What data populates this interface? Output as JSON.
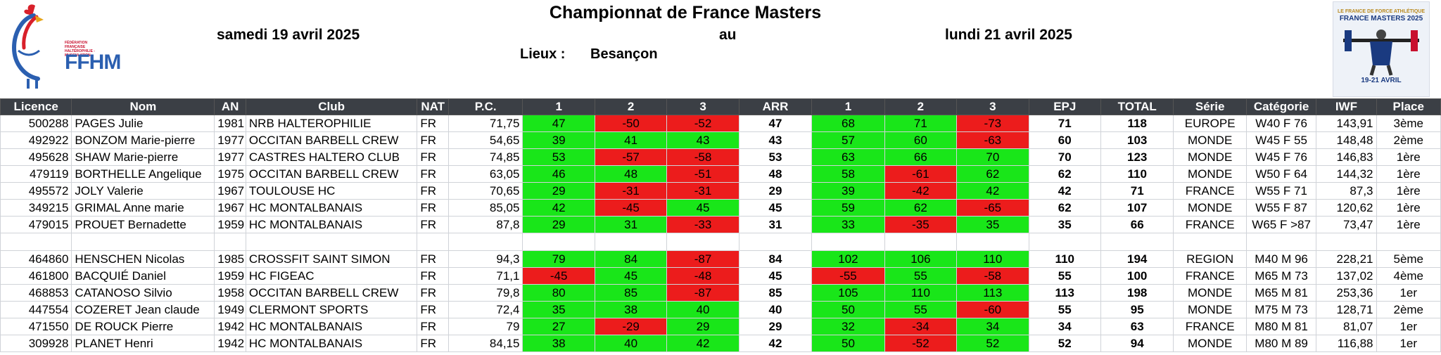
{
  "header": {
    "title": "Championnat de France Masters",
    "start_date": "samedi 19 avril 2025",
    "between": "au",
    "end_date": "lundi 21 avril 2025",
    "lieux_label": "Lieux :",
    "lieux_value": "Besançon"
  },
  "logo": {
    "name": "FFHM",
    "small_text": "FÉDÉRATION FRANÇAISE HALTÉROPHILIE - MUSCULATION"
  },
  "poster": {
    "top": "LE FRANCE DE FORCE ATHLÉTIQUE",
    "title": "FRANCE MASTERS 2025",
    "dates": "19-21 AVRIL"
  },
  "colors": {
    "success": "#19e619",
    "fail": "#ec1c1c",
    "header_bg": "#3b3f45"
  },
  "columns": [
    "Licence",
    "Nom",
    "AN",
    "Club",
    "NAT",
    "P.C.",
    "1",
    "2",
    "3",
    "ARR",
    "1",
    "2",
    "3",
    "EPJ",
    "TOTAL",
    "Série",
    "Catégorie",
    "IWF",
    "Place"
  ],
  "rows": [
    {
      "licence": "500288",
      "nom": "PAGES Julie",
      "an": "1981",
      "club": "NRB HALTEROPHILIE",
      "nat": "FR",
      "pc": "71,75",
      "s1": "47",
      "s2": "-50",
      "s3": "-52",
      "arr": "47",
      "e1": "68",
      "e2": "71",
      "e3": "-73",
      "epj": "71",
      "total": "118",
      "serie": "EUROPE",
      "categorie": "W40 F 76",
      "iwf": "143,91",
      "place": "3ème"
    },
    {
      "licence": "492922",
      "nom": "BONZOM Marie-pierre",
      "an": "1977",
      "club": "OCCITAN BARBELL CREW",
      "nat": "FR",
      "pc": "54,65",
      "s1": "39",
      "s2": "41",
      "s3": "43",
      "arr": "43",
      "e1": "57",
      "e2": "60",
      "e3": "-63",
      "epj": "60",
      "total": "103",
      "serie": "MONDE",
      "categorie": "W45 F 55",
      "iwf": "148,48",
      "place": "2ème"
    },
    {
      "licence": "495628",
      "nom": "SHAW Marie-pierre",
      "an": "1977",
      "club": "CASTRES HALTERO CLUB",
      "nat": "FR",
      "pc": "74,85",
      "s1": "53",
      "s2": "-57",
      "s3": "-58",
      "arr": "53",
      "e1": "63",
      "e2": "66",
      "e3": "70",
      "epj": "70",
      "total": "123",
      "serie": "MONDE",
      "categorie": "W45 F 76",
      "iwf": "146,83",
      "place": "1ère"
    },
    {
      "licence": "479119",
      "nom": "BORTHELLE Angelique",
      "an": "1975",
      "club": "OCCITAN BARBELL CREW",
      "nat": "FR",
      "pc": "63,05",
      "s1": "46",
      "s2": "48",
      "s3": "-51",
      "arr": "48",
      "e1": "58",
      "e2": "-61",
      "e3": "62",
      "epj": "62",
      "total": "110",
      "serie": "MONDE",
      "categorie": "W50 F 64",
      "iwf": "144,32",
      "place": "1ère"
    },
    {
      "licence": "495572",
      "nom": "JOLY Valerie",
      "an": "1967",
      "club": "TOULOUSE HC",
      "nat": "FR",
      "pc": "70,65",
      "s1": "29",
      "s2": "-31",
      "s3": "-31",
      "arr": "29",
      "e1": "39",
      "e2": "-42",
      "e3": "42",
      "epj": "42",
      "total": "71",
      "serie": "FRANCE",
      "categorie": "W55 F 71",
      "iwf": "87,3",
      "place": "1ère"
    },
    {
      "licence": "349215",
      "nom": "GRIMAL Anne marie",
      "an": "1967",
      "club": "HC MONTALBANAIS",
      "nat": "FR",
      "pc": "85,05",
      "s1": "42",
      "s2": "-45",
      "s3": "45",
      "arr": "45",
      "e1": "59",
      "e2": "62",
      "e3": "-65",
      "epj": "62",
      "total": "107",
      "serie": "MONDE",
      "categorie": "W55 F 87",
      "iwf": "120,62",
      "place": "1ère"
    },
    {
      "licence": "479015",
      "nom": "PROUET Bernadette",
      "an": "1959",
      "club": "HC MONTALBANAIS",
      "nat": "FR",
      "pc": "87,8",
      "s1": "29",
      "s2": "31",
      "s3": "-33",
      "arr": "31",
      "e1": "33",
      "e2": "-35",
      "e3": "35",
      "epj": "35",
      "total": "66",
      "serie": "FRANCE",
      "categorie": "W65 F >87",
      "iwf": "73,47",
      "place": "1ère"
    },
    {
      "spacer": true
    },
    {
      "licence": "464860",
      "nom": "HENSCHEN Nicolas",
      "an": "1985",
      "club": "CROSSFIT SAINT SIMON",
      "nat": "FR",
      "pc": "94,3",
      "s1": "79",
      "s2": "84",
      "s3": "-87",
      "arr": "84",
      "e1": "102",
      "e2": "106",
      "e3": "110",
      "epj": "110",
      "total": "194",
      "serie": "REGION",
      "categorie": "M40 M 96",
      "iwf": "228,21",
      "place": "5ème"
    },
    {
      "licence": "461800",
      "nom": "BACQUIÉ Daniel",
      "an": "1959",
      "club": "HC FIGEAC",
      "nat": "FR",
      "pc": "71,1",
      "s1": "-45",
      "s2": "45",
      "s3": "-48",
      "arr": "45",
      "e1": "-55",
      "e2": "55",
      "e3": "-58",
      "epj": "55",
      "total": "100",
      "serie": "FRANCE",
      "categorie": "M65 M 73",
      "iwf": "137,02",
      "place": "4ème"
    },
    {
      "licence": "468853",
      "nom": "CATANOSO Silvio",
      "an": "1958",
      "club": "OCCITAN BARBELL CREW",
      "nat": "FR",
      "pc": "79,8",
      "s1": "80",
      "s2": "85",
      "s3": "-87",
      "arr": "85",
      "e1": "105",
      "e2": "110",
      "e3": "113",
      "epj": "113",
      "total": "198",
      "serie": "MONDE",
      "categorie": "M65 M 81",
      "iwf": "253,36",
      "place": "1er"
    },
    {
      "licence": "447554",
      "nom": "COZERET Jean claude",
      "an": "1949",
      "club": "CLERMONT SPORTS",
      "nat": "FR",
      "pc": "72,4",
      "s1": "35",
      "s2": "38",
      "s3": "40",
      "arr": "40",
      "e1": "50",
      "e2": "55",
      "e3": "-60",
      "epj": "55",
      "total": "95",
      "serie": "MONDE",
      "categorie": "M75 M 73",
      "iwf": "128,71",
      "place": "2ème"
    },
    {
      "licence": "471550",
      "nom": "DE ROUCK Pierre",
      "an": "1942",
      "club": "HC MONTALBANAIS",
      "nat": "FR",
      "pc": "79",
      "s1": "27",
      "s2": "-29",
      "s3": "29",
      "arr": "29",
      "e1": "32",
      "e2": "-34",
      "e3": "34",
      "epj": "34",
      "total": "63",
      "serie": "FRANCE",
      "categorie": "M80 M 81",
      "iwf": "81,07",
      "place": "1er"
    },
    {
      "licence": "309928",
      "nom": "PLANET Henri",
      "an": "1942",
      "club": "HC MONTALBANAIS",
      "nat": "FR",
      "pc": "84,15",
      "s1": "38",
      "s2": "40",
      "s3": "42",
      "arr": "42",
      "e1": "50",
      "e2": "-52",
      "e3": "52",
      "epj": "52",
      "total": "94",
      "serie": "MONDE",
      "categorie": "M80 M 89",
      "iwf": "116,88",
      "place": "1er"
    }
  ]
}
